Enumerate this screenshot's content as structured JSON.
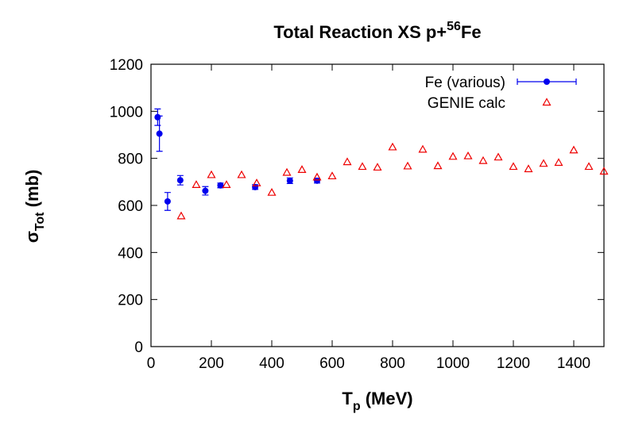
{
  "chart_data": {
    "type": "scatter",
    "title": [
      "Total Reaction XS p+",
      "56",
      "Fe"
    ],
    "y_label": [
      "σ",
      "Tot",
      " (mb)"
    ],
    "x_label": [
      "T",
      "p",
      " (MeV)"
    ],
    "xlim": [
      0,
      1500
    ],
    "xticks": [
      0,
      200,
      400,
      600,
      800,
      1000,
      1200,
      1400
    ],
    "ylim": [
      0,
      1200
    ],
    "yticks": [
      0,
      200,
      400,
      600,
      800,
      1000,
      1200
    ],
    "grid": false,
    "legend": "top-right",
    "series": [
      {
        "name": "Fe (various)",
        "color": "#0000ee",
        "marker": "circle",
        "x": [
          22,
          28,
          55,
          97,
          180,
          230,
          345,
          460,
          550
        ],
        "values": [
          975,
          905,
          617,
          707,
          662,
          685,
          678,
          705,
          705
        ],
        "errors": [
          35,
          75,
          38,
          20,
          18,
          10,
          10,
          12,
          10
        ]
      },
      {
        "name": "GENIE calc",
        "color": "#ee0000",
        "marker": "triangle",
        "x": [
          100,
          150,
          200,
          250,
          300,
          350,
          400,
          450,
          500,
          550,
          600,
          650,
          700,
          750,
          800,
          850,
          900,
          950,
          1000,
          1050,
          1100,
          1150,
          1200,
          1250,
          1300,
          1350,
          1400,
          1450,
          1500
        ],
        "values": [
          555,
          688,
          730,
          688,
          730,
          695,
          655,
          740,
          752,
          720,
          725,
          785,
          765,
          762,
          848,
          767,
          838,
          768,
          808,
          810,
          790,
          805,
          765,
          755,
          778,
          782,
          835,
          765,
          745
        ]
      }
    ]
  }
}
